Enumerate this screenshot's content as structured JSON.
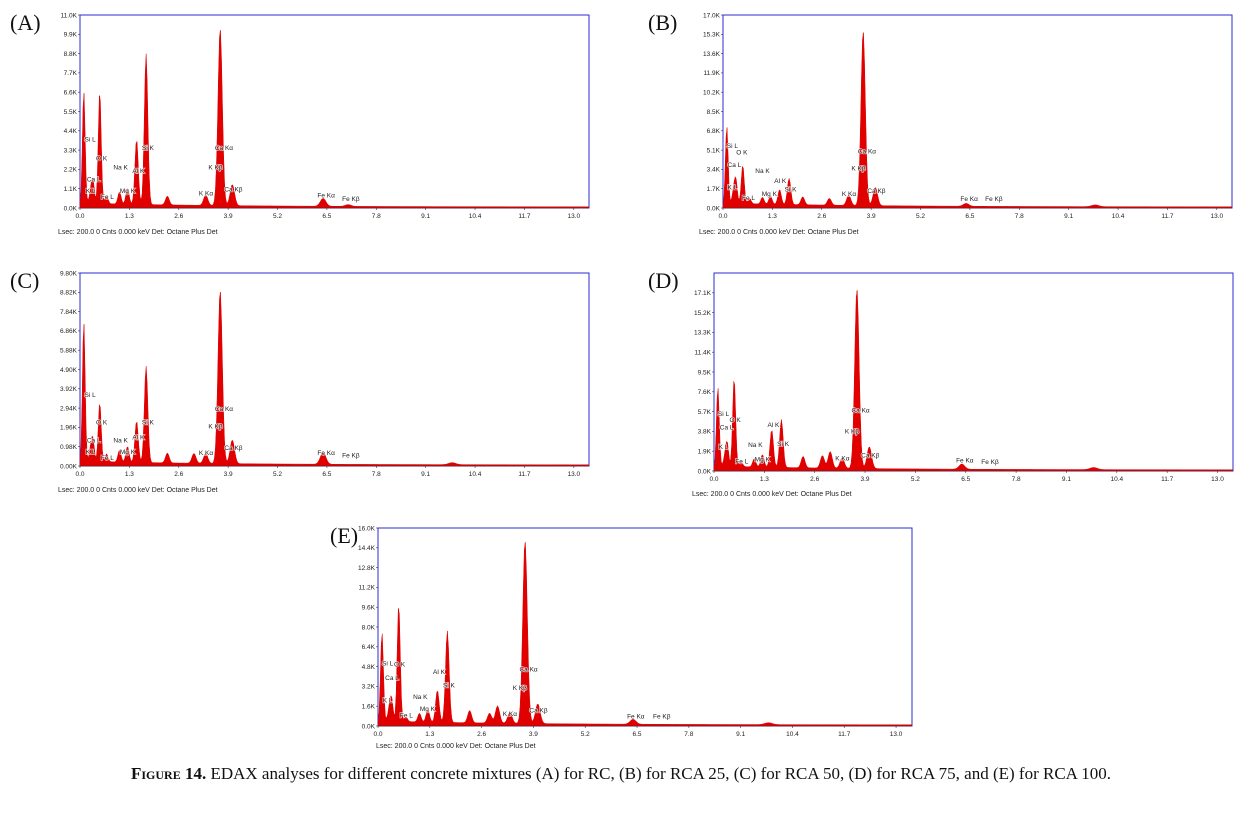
{
  "caption": {
    "lead": "Figure 14.",
    "text": " EDAX analyses for different concrete mixtures (A) for RC, (B) for RCA 25, (C) for RCA 50, (D) for RCA 75, and (E) for RCA 100."
  },
  "colors": {
    "spectrum": "#e00000",
    "frame": "#2b2bd6",
    "axis": "#333333",
    "text": "#222222"
  },
  "chart_data": [
    {
      "id": "A",
      "panel_label": "(A)",
      "type": "area",
      "footer": "Lsec: 200.0 0 Cnts  0.000 keV Det: Octane Plus Det",
      "xlim": [
        0,
        13.4
      ],
      "ylim": [
        0,
        11000
      ],
      "x_ticks": [
        "0.0",
        "1.3",
        "2.6",
        "3.9",
        "5.2",
        "6.5",
        "7.8",
        "9.1",
        "10.4",
        "11.7",
        "13.0"
      ],
      "y_ticks": [
        "0.0K",
        "1.1K",
        "2.2K",
        "3.3K",
        "4.4K",
        "5.5K",
        "6.6K",
        "7.7K",
        "8.8K",
        "9.9K",
        "11.0K"
      ],
      "peaks": [
        {
          "x": 0.1,
          "y": 6400
        },
        {
          "x": 0.28,
          "y": 600
        },
        {
          "x": 0.34,
          "y": 1300
        },
        {
          "x": 0.52,
          "y": 6400
        },
        {
          "x": 0.7,
          "y": 450
        },
        {
          "x": 1.04,
          "y": 700
        },
        {
          "x": 1.25,
          "y": 900
        },
        {
          "x": 1.49,
          "y": 3700
        },
        {
          "x": 1.74,
          "y": 8600
        },
        {
          "x": 2.3,
          "y": 500
        },
        {
          "x": 3.31,
          "y": 600
        },
        {
          "x": 3.69,
          "y": 10100
        },
        {
          "x": 4.01,
          "y": 1200
        },
        {
          "x": 6.4,
          "y": 450
        },
        {
          "x": 7.06,
          "y": 100
        }
      ],
      "labels": [
        {
          "text": "Si L",
          "x": 0.12,
          "y": 3800
        },
        {
          "text": "O  K",
          "x": 0.42,
          "y": 2700
        },
        {
          "text": "Ca L",
          "x": 0.18,
          "y": 1500
        },
        {
          "text": "K  L",
          "x": 0.15,
          "y": 850
        },
        {
          "text": "Fe L",
          "x": 0.55,
          "y": 500
        },
        {
          "text": "Na K",
          "x": 0.88,
          "y": 2200
        },
        {
          "text": "Mg K",
          "x": 1.05,
          "y": 850
        },
        {
          "text": "Al K",
          "x": 1.38,
          "y": 2000
        },
        {
          "text": "Si K",
          "x": 1.63,
          "y": 3300
        },
        {
          "text": "K  Kα",
          "x": 3.13,
          "y": 700
        },
        {
          "text": "Ca Kα",
          "x": 3.55,
          "y": 3300
        },
        {
          "text": "K  Kβ",
          "x": 3.38,
          "y": 2200
        },
        {
          "text": "Ca Kβ",
          "x": 3.8,
          "y": 950
        },
        {
          "text": "Fe Kα",
          "x": 6.25,
          "y": 600
        },
        {
          "text": "Fe Kβ",
          "x": 6.9,
          "y": 400
        }
      ]
    },
    {
      "id": "B",
      "panel_label": "(B)",
      "type": "area",
      "footer": "Lsec: 200.0 0 Cnts  0.000 keV Det: Octane Plus Det",
      "xlim": [
        0,
        13.4
      ],
      "ylim": [
        0,
        17000
      ],
      "x_ticks": [
        "0.0",
        "1.3",
        "2.6",
        "3.9",
        "5.2",
        "6.5",
        "7.8",
        "9.1",
        "10.4",
        "11.7",
        "13.0"
      ],
      "y_ticks": [
        "0.0K",
        "1.7K",
        "3.4K",
        "5.1K",
        "6.8K",
        "8.5K",
        "10.2K",
        "11.9K",
        "13.6K",
        "15.3K",
        "17.0K"
      ],
      "peaks": [
        {
          "x": 0.1,
          "y": 6800
        },
        {
          "x": 0.28,
          "y": 1100
        },
        {
          "x": 0.34,
          "y": 2000
        },
        {
          "x": 0.52,
          "y": 3400
        },
        {
          "x": 0.7,
          "y": 500
        },
        {
          "x": 1.04,
          "y": 600
        },
        {
          "x": 1.25,
          "y": 700
        },
        {
          "x": 1.49,
          "y": 1300
        },
        {
          "x": 1.74,
          "y": 2300
        },
        {
          "x": 2.1,
          "y": 700
        },
        {
          "x": 2.8,
          "y": 600
        },
        {
          "x": 3.31,
          "y": 900
        },
        {
          "x": 3.69,
          "y": 15400
        },
        {
          "x": 4.01,
          "y": 1600
        },
        {
          "x": 6.4,
          "y": 250
        },
        {
          "x": 9.8,
          "y": 150
        }
      ],
      "labels": [
        {
          "text": "Si L",
          "x": 0.1,
          "y": 5300
        },
        {
          "text": "O  K",
          "x": 0.35,
          "y": 4700
        },
        {
          "text": "Ca L",
          "x": 0.12,
          "y": 3600
        },
        {
          "text": "K  L",
          "x": 0.12,
          "y": 1650
        },
        {
          "text": "Fe L",
          "x": 0.5,
          "y": 700
        },
        {
          "text": "Na K",
          "x": 0.85,
          "y": 3100
        },
        {
          "text": "Mg K",
          "x": 1.02,
          "y": 1050
        },
        {
          "text": "Al K",
          "x": 1.35,
          "y": 2200
        },
        {
          "text": "Si K",
          "x": 1.62,
          "y": 1450
        },
        {
          "text": "K  Kα",
          "x": 3.13,
          "y": 1050
        },
        {
          "text": "Ca Kα",
          "x": 3.55,
          "y": 4800
        },
        {
          "text": "K  Kβ",
          "x": 3.38,
          "y": 3300
        },
        {
          "text": "Ca Kβ",
          "x": 3.8,
          "y": 1300
        },
        {
          "text": "Fe Kα",
          "x": 6.25,
          "y": 600
        },
        {
          "text": "Fe Kβ",
          "x": 6.9,
          "y": 600
        }
      ]
    },
    {
      "id": "C",
      "panel_label": "(C)",
      "type": "area",
      "footer": "Lsec: 200.0 0 Cnts  0.000 keV Det: Octane Plus Det",
      "xlim": [
        0,
        13.4
      ],
      "ylim": [
        0,
        9800
      ],
      "x_ticks": [
        "0.0",
        "1.3",
        "2.6",
        "3.9",
        "5.2",
        "6.5",
        "7.8",
        "9.1",
        "10.4",
        "11.7",
        "13.0"
      ],
      "y_ticks": [
        "0.00K",
        "0.98K",
        "1.96K",
        "2.94K",
        "3.92K",
        "4.90K",
        "5.88K",
        "6.86K",
        "7.84K",
        "8.82K",
        "9.80K"
      ],
      "peaks": [
        {
          "x": 0.1,
          "y": 7100
        },
        {
          "x": 0.28,
          "y": 600
        },
        {
          "x": 0.34,
          "y": 1100
        },
        {
          "x": 0.52,
          "y": 3000
        },
        {
          "x": 0.7,
          "y": 400
        },
        {
          "x": 1.04,
          "y": 600
        },
        {
          "x": 1.25,
          "y": 800
        },
        {
          "x": 1.49,
          "y": 2100
        },
        {
          "x": 1.74,
          "y": 4900
        },
        {
          "x": 2.3,
          "y": 500
        },
        {
          "x": 3.0,
          "y": 500
        },
        {
          "x": 3.31,
          "y": 500
        },
        {
          "x": 3.69,
          "y": 8800
        },
        {
          "x": 4.01,
          "y": 1200
        },
        {
          "x": 6.4,
          "y": 600
        },
        {
          "x": 9.8,
          "y": 100
        }
      ],
      "labels": [
        {
          "text": "Si L",
          "x": 0.12,
          "y": 3500
        },
        {
          "text": "O  K",
          "x": 0.42,
          "y": 2100
        },
        {
          "text": "Ca L",
          "x": 0.18,
          "y": 1200
        },
        {
          "text": "K  L",
          "x": 0.15,
          "y": 600
        },
        {
          "text": "Fe L",
          "x": 0.55,
          "y": 300
        },
        {
          "text": "Na K",
          "x": 0.88,
          "y": 1200
        },
        {
          "text": "Mg K",
          "x": 1.05,
          "y": 600
        },
        {
          "text": "Al K",
          "x": 1.38,
          "y": 1350
        },
        {
          "text": "Si K",
          "x": 1.63,
          "y": 2100
        },
        {
          "text": "K  Kα",
          "x": 3.13,
          "y": 560
        },
        {
          "text": "Ca Kα",
          "x": 3.55,
          "y": 2800
        },
        {
          "text": "K  Kβ",
          "x": 3.38,
          "y": 1900
        },
        {
          "text": "Ca Kβ",
          "x": 3.8,
          "y": 800
        },
        {
          "text": "Fe Kα",
          "x": 6.25,
          "y": 560
        },
        {
          "text": "Fe Kβ",
          "x": 6.9,
          "y": 420
        }
      ]
    },
    {
      "id": "D",
      "panel_label": "(D)",
      "type": "area",
      "footer": "Lsec: 200.0 0 Cnts  0.000 keV Det: Octane Plus Det",
      "xlim": [
        0,
        13.4
      ],
      "ylim": [
        0,
        19000
      ],
      "x_ticks": [
        "0.0",
        "1.3",
        "2.6",
        "3.9",
        "5.2",
        "6.5",
        "7.8",
        "9.1",
        "10.4",
        "11.7",
        "13.0"
      ],
      "y_ticks": [
        "0.0K",
        "1.9K",
        "3.8K",
        "5.7K",
        "7.6K",
        "9.5K",
        "11.4K",
        "13.3K",
        "15.2K",
        "17.1K"
      ],
      "peaks": [
        {
          "x": 0.1,
          "y": 7600
        },
        {
          "x": 0.28,
          "y": 800
        },
        {
          "x": 0.34,
          "y": 2200
        },
        {
          "x": 0.52,
          "y": 8500
        },
        {
          "x": 0.7,
          "y": 500
        },
        {
          "x": 1.04,
          "y": 800
        },
        {
          "x": 1.25,
          "y": 1200
        },
        {
          "x": 1.49,
          "y": 3600
        },
        {
          "x": 1.74,
          "y": 4600
        },
        {
          "x": 2.3,
          "y": 1100
        },
        {
          "x": 2.8,
          "y": 1200
        },
        {
          "x": 3.0,
          "y": 1600
        },
        {
          "x": 3.31,
          "y": 1000
        },
        {
          "x": 3.69,
          "y": 17300
        },
        {
          "x": 4.01,
          "y": 2100
        },
        {
          "x": 6.4,
          "y": 500
        },
        {
          "x": 9.8,
          "y": 200
        }
      ],
      "labels": [
        {
          "text": "Si L",
          "x": 0.1,
          "y": 5300
        },
        {
          "text": "O  K",
          "x": 0.4,
          "y": 4700
        },
        {
          "text": "Ca L",
          "x": 0.15,
          "y": 4000
        },
        {
          "text": "K  L",
          "x": 0.12,
          "y": 2100
        },
        {
          "text": "Fe L",
          "x": 0.55,
          "y": 700
        },
        {
          "text": "Na K",
          "x": 0.88,
          "y": 2300
        },
        {
          "text": "Mg K",
          "x": 1.05,
          "y": 900
        },
        {
          "text": "Al K",
          "x": 1.38,
          "y": 4200
        },
        {
          "text": "Si K",
          "x": 1.63,
          "y": 2400
        },
        {
          "text": "K  Kα",
          "x": 3.13,
          "y": 1000
        },
        {
          "text": "Ca Kα",
          "x": 3.55,
          "y": 5600
        },
        {
          "text": "K  Kβ",
          "x": 3.38,
          "y": 3600
        },
        {
          "text": "Ca Kβ",
          "x": 3.8,
          "y": 1300
        },
        {
          "text": "Fe Kα",
          "x": 6.25,
          "y": 800
        },
        {
          "text": "Fe Kβ",
          "x": 6.9,
          "y": 650
        }
      ]
    },
    {
      "id": "E",
      "panel_label": "(E)",
      "type": "area",
      "footer": "Lsec: 200.0 0 Cnts  0.000 keV Det: Octane Plus Det",
      "xlim": [
        0,
        13.4
      ],
      "ylim": [
        0,
        16000
      ],
      "x_ticks": [
        "0.0",
        "1.3",
        "2.6",
        "3.9",
        "5.2",
        "6.5",
        "7.8",
        "9.1",
        "10.4",
        "11.7",
        "13.0"
      ],
      "y_ticks": [
        "0.0K",
        "1.6K",
        "3.2K",
        "4.8K",
        "6.4K",
        "8.0K",
        "9.6K",
        "11.2K",
        "12.8K",
        "14.4K",
        "16.0K"
      ],
      "peaks": [
        {
          "x": 0.1,
          "y": 7200
        },
        {
          "x": 0.28,
          "y": 900
        },
        {
          "x": 0.34,
          "y": 1800
        },
        {
          "x": 0.52,
          "y": 9500
        },
        {
          "x": 0.7,
          "y": 400
        },
        {
          "x": 1.04,
          "y": 700
        },
        {
          "x": 1.25,
          "y": 1000
        },
        {
          "x": 1.49,
          "y": 2600
        },
        {
          "x": 1.74,
          "y": 7400
        },
        {
          "x": 2.3,
          "y": 1000
        },
        {
          "x": 2.8,
          "y": 800
        },
        {
          "x": 3.0,
          "y": 1400
        },
        {
          "x": 3.31,
          "y": 900
        },
        {
          "x": 3.69,
          "y": 14800
        },
        {
          "x": 4.01,
          "y": 1600
        },
        {
          "x": 6.4,
          "y": 400
        },
        {
          "x": 9.8,
          "y": 150
        }
      ],
      "labels": [
        {
          "text": "Si L",
          "x": 0.1,
          "y": 4900
        },
        {
          "text": "O  K",
          "x": 0.4,
          "y": 4800
        },
        {
          "text": "Ca L",
          "x": 0.18,
          "y": 3700
        },
        {
          "text": "K  L",
          "x": 0.12,
          "y": 1900
        },
        {
          "text": "Fe L",
          "x": 0.55,
          "y": 700
        },
        {
          "text": "Na K",
          "x": 0.88,
          "y": 2200
        },
        {
          "text": "Mg K",
          "x": 1.05,
          "y": 1200
        },
        {
          "text": "Al K",
          "x": 1.38,
          "y": 4200
        },
        {
          "text": "Si K",
          "x": 1.63,
          "y": 3100
        },
        {
          "text": "K  Kα",
          "x": 3.13,
          "y": 800
        },
        {
          "text": "Ca Kα",
          "x": 3.55,
          "y": 4400
        },
        {
          "text": "K  Kβ",
          "x": 3.38,
          "y": 2900
        },
        {
          "text": "Ca Kβ",
          "x": 3.8,
          "y": 1100
        },
        {
          "text": "Fe Kα",
          "x": 6.25,
          "y": 600
        },
        {
          "text": "Fe Kβ",
          "x": 6.9,
          "y": 600
        }
      ]
    }
  ]
}
